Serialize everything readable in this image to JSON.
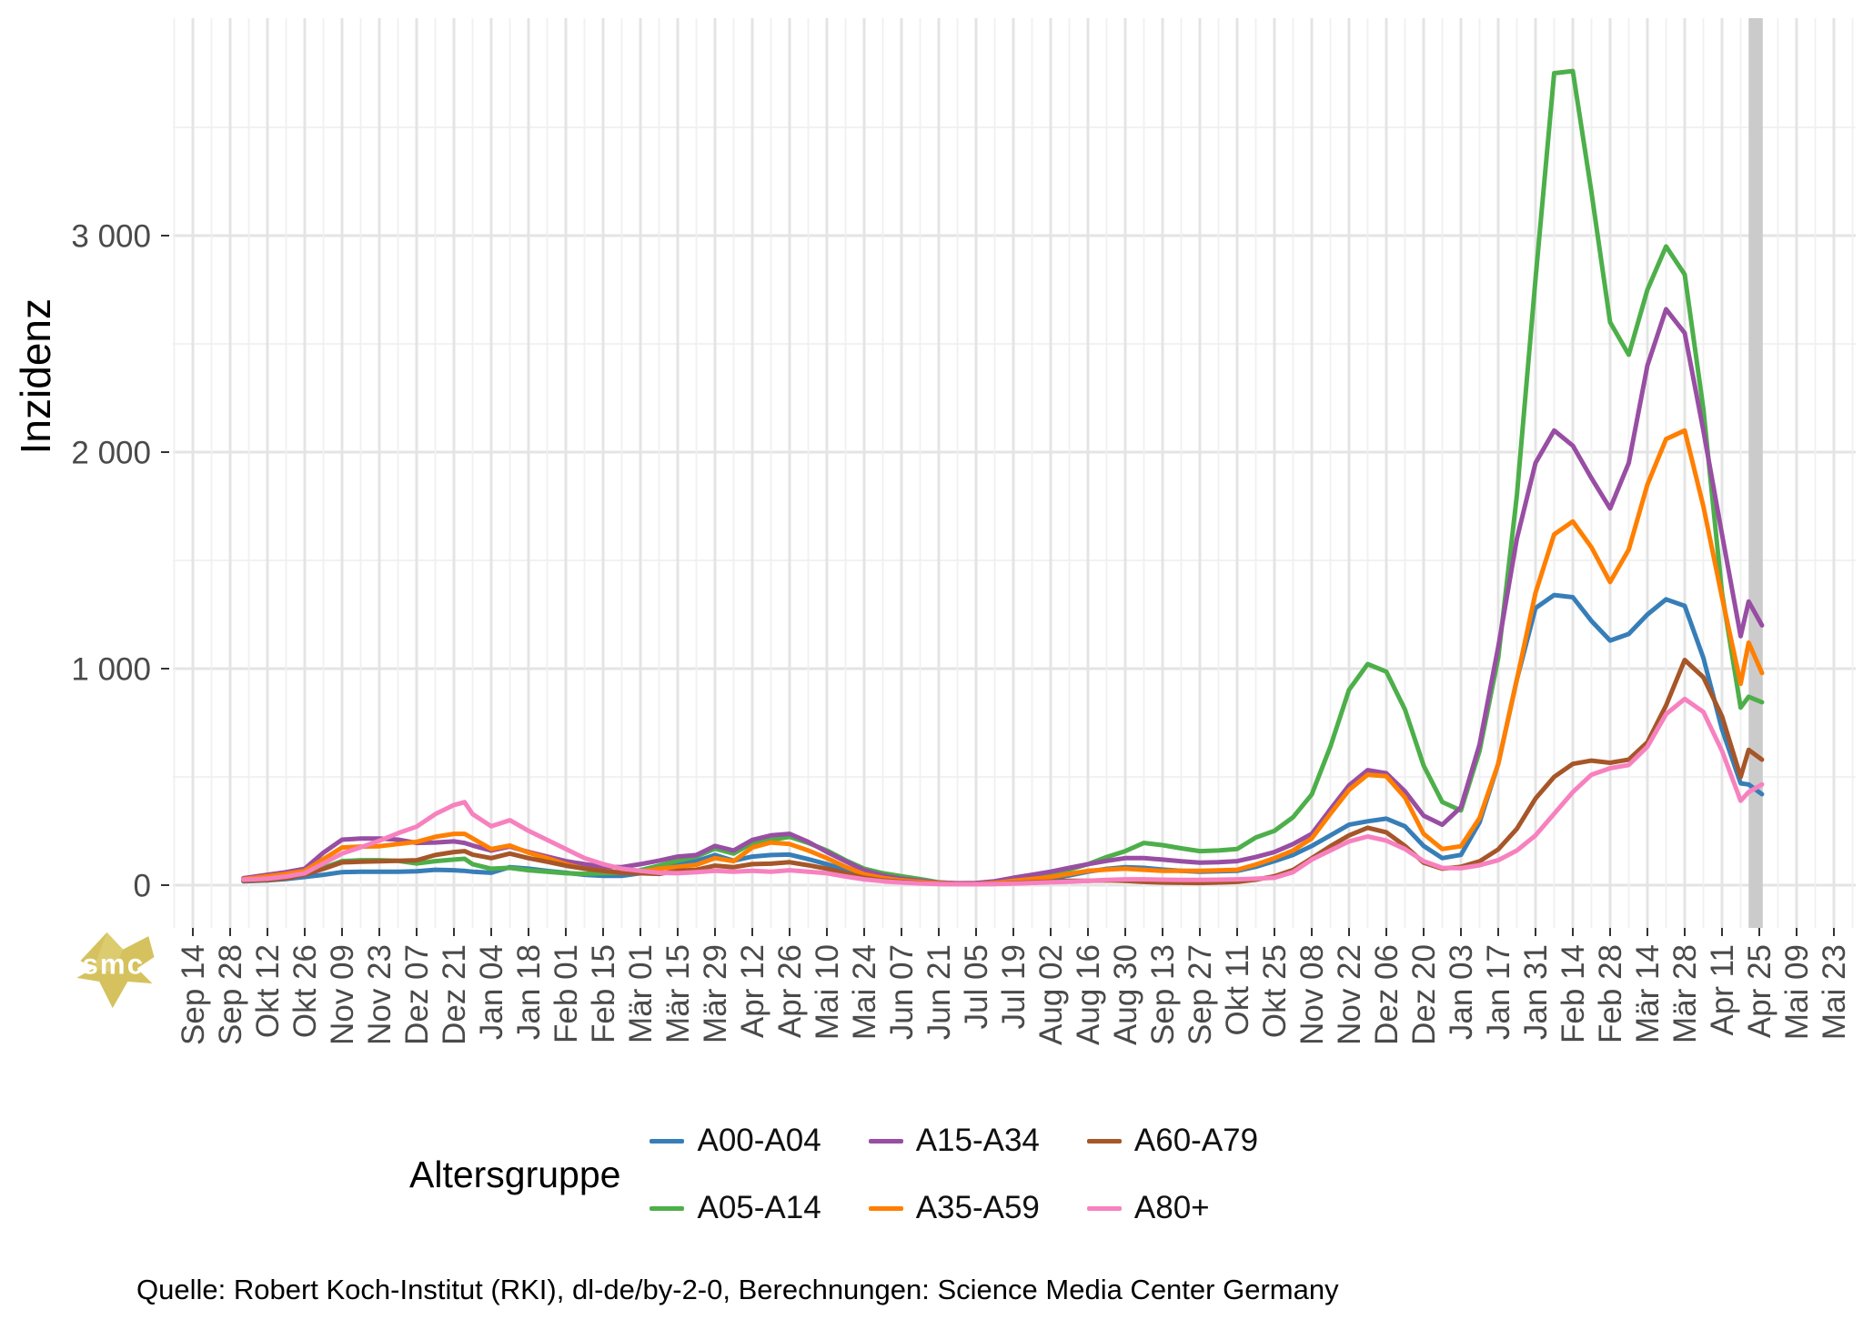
{
  "figure": {
    "legend_title": "Altersgruppe",
    "caption": "Quelle: Robert Koch-Institut (RKI), dl-de/by-2-0, Berechnungen: Science Media Center Germany",
    "watermark_text": "smc",
    "watermark_color": "#d5c25e",
    "background_color": "#ffffff"
  },
  "chart_data": {
    "type": "line",
    "title": "",
    "xlabel": "",
    "ylabel": "Inzidenz",
    "legend_position": "bottom",
    "grid": "major+minor",
    "ylim": [
      0,
      4000
    ],
    "y_ticks": [
      0,
      1000,
      2000,
      3000
    ],
    "y_tick_labels": [
      "0",
      "1 000",
      "2 000",
      "3 000"
    ],
    "x_tick_labels": [
      "Sep 14",
      "Sep 28",
      "Okt 12",
      "Okt 26",
      "Nov 09",
      "Nov 23",
      "Dez 07",
      "Dez 21",
      "Jan 04",
      "Jan 18",
      "Feb 01",
      "Feb 15",
      "Mär 01",
      "Mär 15",
      "Mär 29",
      "Apr 12",
      "Apr 26",
      "Mai 10",
      "Mai 24",
      "Jun 07",
      "Jun 21",
      "Jul 05",
      "Jul 19",
      "Aug 02",
      "Aug 16",
      "Aug 30",
      "Sep 13",
      "Sep 27",
      "Okt 11",
      "Okt 25",
      "Nov 08",
      "Nov 22",
      "Dez 06",
      "Dez 20",
      "Jan 03",
      "Jan 17",
      "Jan 31",
      "Feb 14",
      "Feb 28",
      "Mär 14",
      "Mär 28",
      "Apr 11",
      "Apr 25",
      "Mai 09",
      "Mai 23"
    ],
    "x_tick_days": [
      0,
      14,
      28,
      42,
      56,
      70,
      84,
      98,
      112,
      126,
      140,
      154,
      168,
      182,
      196,
      210,
      224,
      238,
      252,
      266,
      280,
      294,
      308,
      322,
      336,
      350,
      364,
      378,
      392,
      406,
      420,
      434,
      448,
      462,
      476,
      490,
      504,
      518,
      532,
      546,
      560,
      574,
      588,
      602,
      616
    ],
    "highlight_band_days": [
      584,
      589.3
    ],
    "highlight_band_color": "#cbcbcb",
    "x_days_since_first_tick": [
      19,
      28,
      35,
      42,
      49,
      56,
      63,
      70,
      77,
      84,
      91,
      98,
      102,
      105,
      112,
      119,
      126,
      133,
      140,
      147,
      154,
      161,
      168,
      175,
      182,
      189,
      196,
      203,
      210,
      217,
      224,
      231,
      238,
      245,
      252,
      259,
      266,
      273,
      280,
      287,
      294,
      301,
      308,
      315,
      322,
      329,
      336,
      343,
      350,
      357,
      364,
      371,
      378,
      385,
      392,
      399,
      406,
      413,
      420,
      427,
      434,
      441,
      448,
      455,
      462,
      469,
      476,
      483,
      490,
      497,
      504,
      511,
      518,
      525,
      532,
      539,
      546,
      553,
      560,
      567,
      574,
      581,
      584,
      589
    ],
    "series": [
      {
        "name": "A00-A04",
        "color": "#377EB8",
        "values": [
          18,
          22,
          28,
          38,
          48,
          60,
          62,
          62,
          62,
          64,
          71,
          69,
          66,
          62,
          57,
          83,
          76,
          66,
          57,
          48,
          43,
          43,
          55,
          76,
          97,
          111,
          139,
          113,
          132,
          139,
          141,
          120,
          97,
          70,
          45,
          30,
          20,
          13,
          8,
          6,
          6,
          8,
          13,
          20,
          29,
          45,
          62,
          75,
          83,
          80,
          72,
          66,
          62,
          64,
          66,
          85,
          111,
          140,
          181,
          230,
          279,
          295,
          307,
          272,
          181,
          125,
          140,
          290,
          560,
          950,
          1280,
          1340,
          1330,
          1220,
          1130,
          1160,
          1250,
          1320,
          1290,
          1050,
          720,
          470,
          465,
          420
        ]
      },
      {
        "name": "A05-A14",
        "color": "#4DAF4A",
        "values": [
          22,
          26,
          35,
          50,
          80,
          111,
          115,
          115,
          112,
          100,
          111,
          118,
          122,
          97,
          76,
          80,
          69,
          62,
          55,
          52,
          55,
          57,
          69,
          90,
          113,
          132,
          169,
          146,
          195,
          209,
          223,
          195,
          160,
          115,
          76,
          55,
          41,
          28,
          13,
          8,
          8,
          14,
          24,
          38,
          52,
          72,
          97,
          130,
          157,
          195,
          185,
          170,
          157,
          160,
          167,
          220,
          251,
          314,
          419,
          640,
          902,
          1021,
          986,
          811,
          552,
          384,
          345,
          620,
          1050,
          1800,
          2800,
          3750,
          3760,
          3200,
          2600,
          2450,
          2750,
          2950,
          2820,
          2200,
          1350,
          820,
          870,
          845
        ]
      },
      {
        "name": "A15-A34",
        "color": "#984EA3",
        "values": [
          32,
          48,
          60,
          76,
          150,
          210,
          215,
          215,
          210,
          195,
          197,
          202,
          195,
          183,
          160,
          178,
          153,
          132,
          111,
          97,
          85,
          83,
          97,
          113,
          132,
          139,
          181,
          160,
          209,
          230,
          237,
          200,
          153,
          110,
          69,
          45,
          30,
          20,
          12,
          9,
          10,
          18,
          34,
          48,
          62,
          80,
          97,
          112,
          125,
          125,
          118,
          110,
          104,
          106,
          111,
          130,
          153,
          190,
          237,
          350,
          461,
          531,
          517,
          433,
          321,
          279,
          360,
          650,
          1100,
          1600,
          1950,
          2100,
          2030,
          1880,
          1740,
          1950,
          2400,
          2660,
          2550,
          2100,
          1620,
          1150,
          1310,
          1200
        ]
      },
      {
        "name": "A35-A59",
        "color": "#FF7F00",
        "values": [
          28,
          41,
          52,
          66,
          120,
          174,
          178,
          180,
          190,
          200,
          223,
          237,
          237,
          216,
          167,
          183,
          150,
          125,
          97,
          76,
          66,
          57,
          62,
          76,
          85,
          94,
          125,
          111,
          174,
          197,
          190,
          160,
          125,
          85,
          50,
          33,
          22,
          15,
          9,
          6,
          6,
          10,
          20,
          28,
          38,
          52,
          66,
          72,
          76,
          71,
          66,
          66,
          66,
          68,
          71,
          95,
          125,
          160,
          216,
          330,
          440,
          510,
          503,
          405,
          237,
          167,
          180,
          310,
          560,
          950,
          1350,
          1620,
          1680,
          1560,
          1400,
          1550,
          1850,
          2060,
          2100,
          1750,
          1330,
          930,
          1120,
          980
        ]
      },
      {
        "name": "A60-A79",
        "color": "#A65628",
        "values": [
          20,
          24,
          32,
          49,
          75,
          105,
          108,
          110,
          112,
          115,
          139,
          153,
          157,
          141,
          125,
          146,
          125,
          108,
          90,
          76,
          66,
          57,
          55,
          52,
          66,
          71,
          90,
          83,
          97,
          99,
          106,
          92,
          76,
          55,
          34,
          22,
          15,
          10,
          6,
          5,
          5,
          6,
          10,
          13,
          17,
          20,
          20,
          22,
          20,
          15,
          12,
          11,
          10,
          12,
          15,
          25,
          41,
          70,
          125,
          180,
          230,
          265,
          244,
          181,
          104,
          76,
          85,
          110,
          165,
          260,
          400,
          500,
          560,
          575,
          565,
          580,
          660,
          830,
          1040,
          960,
          780,
          500,
          625,
          580
        ]
      },
      {
        "name": "A80+",
        "color": "#F781BF",
        "values": [
          25,
          30,
          40,
          55,
          100,
          146,
          175,
          205,
          240,
          270,
          328,
          370,
          383,
          328,
          272,
          300,
          251,
          209,
          167,
          125,
          97,
          76,
          66,
          57,
          55,
          60,
          66,
          62,
          66,
          62,
          69,
          62,
          55,
          40,
          27,
          18,
          12,
          8,
          5,
          4,
          4,
          5,
          7,
          10,
          13,
          16,
          20,
          24,
          27,
          27,
          25,
          24,
          24,
          25,
          27,
          30,
          34,
          60,
          118,
          160,
          202,
          225,
          206,
          167,
          111,
          80,
          78,
          92,
          115,
          160,
          230,
          330,
          430,
          510,
          540,
          555,
          640,
          790,
          860,
          800,
          620,
          390,
          430,
          465
        ]
      }
    ]
  }
}
